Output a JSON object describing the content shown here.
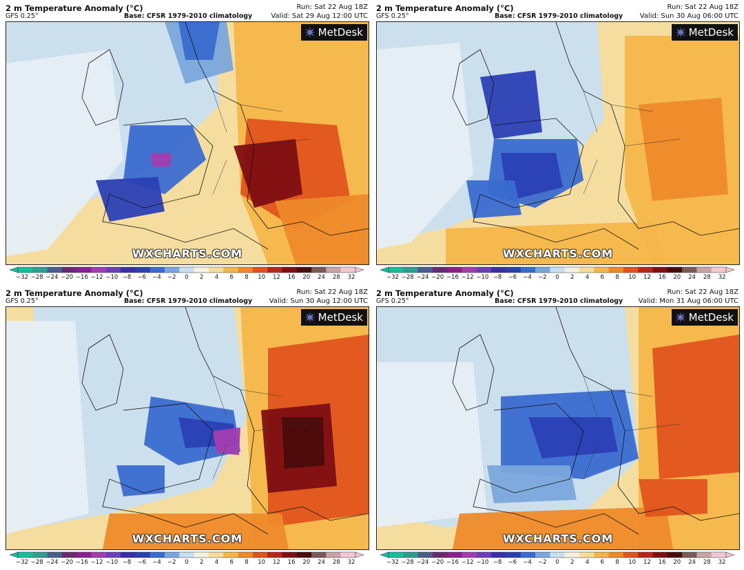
{
  "branding": {
    "logo_text": "MetDesk",
    "watermark": "WXCHARTS.COM"
  },
  "colorbar": {
    "ticks": [
      "−32",
      "−28",
      "−24",
      "−20",
      "−16",
      "−12",
      "−10",
      "−8",
      "−6",
      "−4",
      "−2",
      "0",
      "2",
      "4",
      "6",
      "8",
      "10",
      "12",
      "16",
      "20",
      "24",
      "28",
      "32"
    ],
    "colors": [
      "#1abc9c",
      "#2f9e8f",
      "#4b5e8c",
      "#6a2a6e",
      "#8e1f8e",
      "#a23db0",
      "#6b3fb8",
      "#3b2fa8",
      "#2b3fb5",
      "#3a6bd0",
      "#7aa6dc",
      "#c9def0",
      "#f5f1e0",
      "#f6dc9a",
      "#f4b64a",
      "#ee8a2a",
      "#e0541c",
      "#b8261a",
      "#7e0f12",
      "#4a0c0c",
      "#7a5a5a",
      "#c8a4a4",
      "#f2c6d2"
    ]
  },
  "panels": [
    {
      "title": "2 m Temperature Anomaly (°C)",
      "model": "GFS 0.25°",
      "base": "Base: CFSR 1979-2010 climatology",
      "run": "Run: Sat 22 Aug 18Z",
      "valid": "Valid: Sat 29 Aug 12:00 UTC"
    },
    {
      "title": "2 m Temperature Anomaly (°C)",
      "model": "GFS 0.25°",
      "base": "Base: CFSR 1979-2010 climatology",
      "run": "Run: Sat 22 Aug 18Z",
      "valid": "Valid: Sun 30 Aug 06:00 UTC"
    },
    {
      "title": "2 m Temperature Anomaly (°C)",
      "model": "GFS 0.25°",
      "base": "Base: CFSR 1979-2010 climatology",
      "run": "Run: Sat 22 Aug 18Z",
      "valid": "Valid: Sun 30 Aug 12:00 UTC"
    },
    {
      "title": "2 m Temperature Anomaly (°C)",
      "model": "GFS 0.25°",
      "base": "Base: CFSR 1979-2010 climatology",
      "run": "Run: Sat 22 Aug 18Z",
      "valid": "Valid: Mon 31 Aug 06:00 UTC"
    }
  ]
}
